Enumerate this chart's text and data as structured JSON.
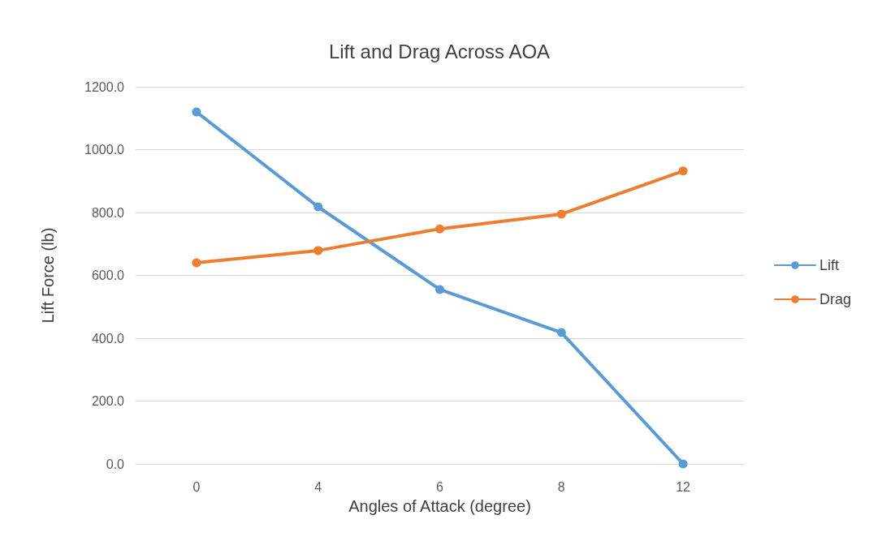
{
  "chart_data": {
    "type": "line",
    "title": "Lift and Drag Across AOA",
    "xlabel": "Angles of Attack (degree)",
    "ylabel": "Lift Force (lb)",
    "categories": [
      "0",
      "4",
      "6",
      "8",
      "12"
    ],
    "series": [
      {
        "name": "Lift",
        "color": "#5b9bd5",
        "values": [
          1120,
          818,
          555,
          418,
          0
        ]
      },
      {
        "name": "Drag",
        "color": "#ed7d31",
        "values": [
          640,
          679,
          748,
          795,
          932
        ]
      }
    ],
    "ylim": [
      0,
      1200
    ],
    "yticks": [
      {
        "value": 0,
        "label": "0.0"
      },
      {
        "value": 200,
        "label": "200.0"
      },
      {
        "value": 400,
        "label": "400.0"
      },
      {
        "value": 600,
        "label": "600.0"
      },
      {
        "value": 800,
        "label": "800.0"
      },
      {
        "value": 1000,
        "label": "1000.0"
      },
      {
        "value": 1200,
        "label": "1200.0"
      }
    ],
    "grid": "y",
    "legend": "right",
    "marker": "circle",
    "line_style": "solid"
  }
}
